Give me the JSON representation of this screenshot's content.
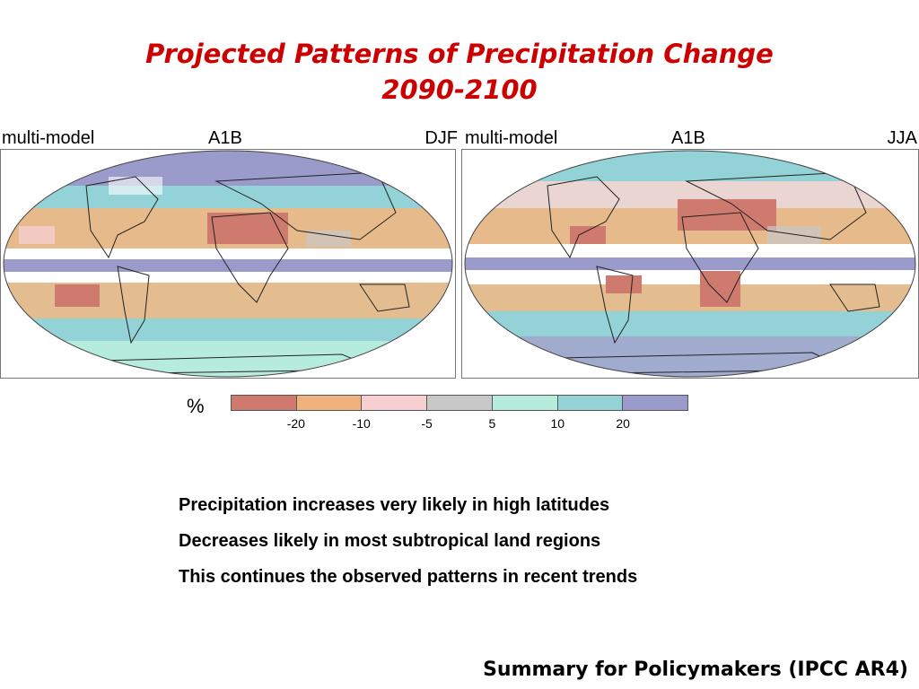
{
  "title": {
    "line1": "Projected Patterns of Precipitation Change",
    "line2": "2090-2100"
  },
  "panels": [
    {
      "model": "multi-model",
      "scenario": "A1B",
      "season": "DJF"
    },
    {
      "model": "multi-model",
      "scenario": "A1B",
      "season": "JJA"
    }
  ],
  "legend": {
    "unit": "%",
    "colors": [
      "#cf7a6e",
      "#efb27c",
      "#f8cfd0",
      "#c8c8c8",
      "#b6ecdd",
      "#93d3d8",
      "#9b9bcb"
    ],
    "ticks": [
      "-20",
      "-10",
      "-5",
      "5",
      "10",
      "20"
    ]
  },
  "bullets": [
    "Precipitation increases very likely in high latitudes",
    "Decreases likely in most subtropical land regions",
    "This continues the observed patterns in recent trends"
  ],
  "source": "Summary for Policymakers (IPCC AR4)"
}
